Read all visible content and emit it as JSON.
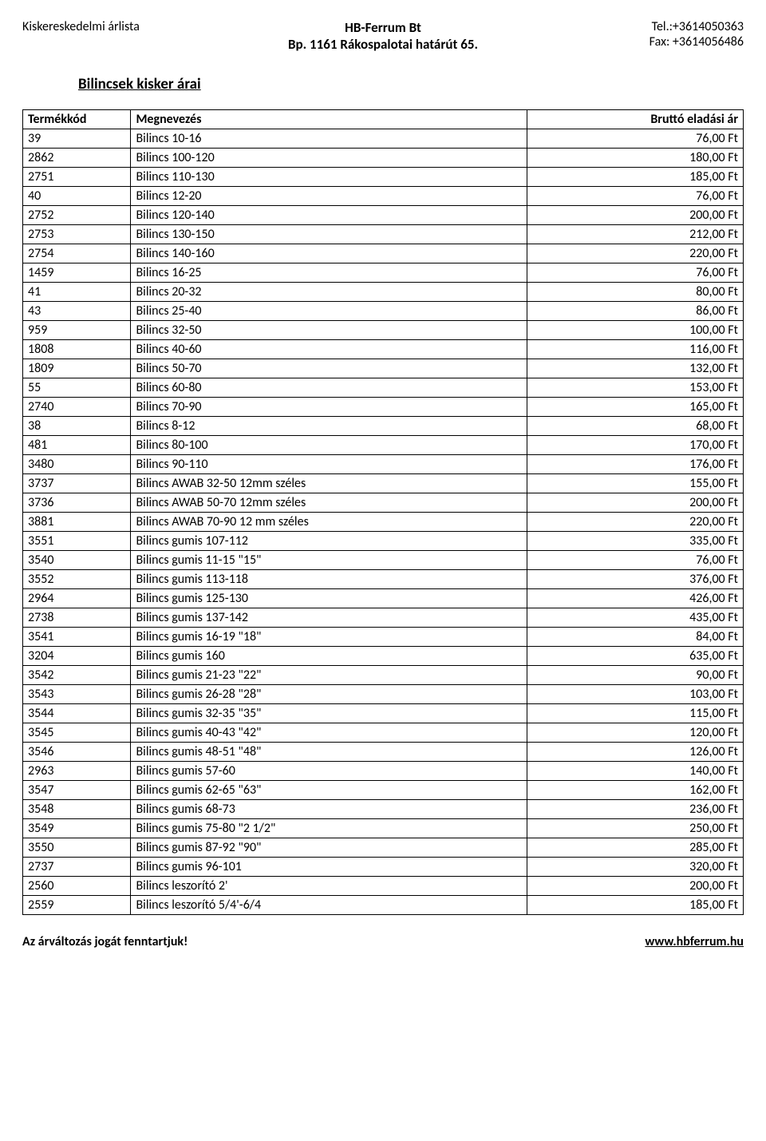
{
  "header": {
    "left": "Kiskereskedelmi árlista",
    "center_line1": "HB-Ferrum Bt",
    "center_line2": "Bp. 1161 Rákospalotai határút 65.",
    "right_line1": "Tel.:+3614050363",
    "right_line2": "Fax: +3614056486"
  },
  "section_title": "Bilincsek kisker árai",
  "columns": {
    "code": "Termékkód",
    "name": "Megnevezés",
    "price": "Bruttó eladási ár"
  },
  "rows": [
    {
      "code": "39",
      "name": "Bilincs 10-16",
      "price": "76,00 Ft"
    },
    {
      "code": "2862",
      "name": "Bilincs 100-120",
      "price": "180,00 Ft"
    },
    {
      "code": "2751",
      "name": "Bilincs 110-130",
      "price": "185,00 Ft"
    },
    {
      "code": "40",
      "name": "Bilincs 12-20",
      "price": "76,00 Ft"
    },
    {
      "code": "2752",
      "name": "Bilincs 120-140",
      "price": "200,00 Ft"
    },
    {
      "code": "2753",
      "name": "Bilincs 130-150",
      "price": "212,00 Ft"
    },
    {
      "code": "2754",
      "name": "Bilincs 140-160",
      "price": "220,00 Ft"
    },
    {
      "code": "1459",
      "name": "Bilincs 16-25",
      "price": "76,00 Ft"
    },
    {
      "code": "41",
      "name": "Bilincs 20-32",
      "price": "80,00 Ft"
    },
    {
      "code": "43",
      "name": "Bilincs 25-40",
      "price": "86,00 Ft"
    },
    {
      "code": "959",
      "name": "Bilincs 32-50",
      "price": "100,00 Ft"
    },
    {
      "code": "1808",
      "name": "Bilincs 40-60",
      "price": "116,00 Ft"
    },
    {
      "code": "1809",
      "name": "Bilincs 50-70",
      "price": "132,00 Ft"
    },
    {
      "code": "55",
      "name": "Bilincs 60-80",
      "price": "153,00 Ft"
    },
    {
      "code": "2740",
      "name": "Bilincs 70-90",
      "price": "165,00 Ft"
    },
    {
      "code": "38",
      "name": "Bilincs 8-12",
      "price": "68,00 Ft"
    },
    {
      "code": "481",
      "name": "Bilincs 80-100",
      "price": "170,00 Ft"
    },
    {
      "code": "3480",
      "name": "Bilincs 90-110",
      "price": "176,00 Ft"
    },
    {
      "code": "3737",
      "name": "Bilincs AWAB 32-50 12mm széles",
      "price": "155,00 Ft"
    },
    {
      "code": "3736",
      "name": "Bilincs AWAB 50-70 12mm széles",
      "price": "200,00 Ft"
    },
    {
      "code": "3881",
      "name": "Bilincs AWAB 70-90 12 mm széles",
      "price": "220,00 Ft"
    },
    {
      "code": "3551",
      "name": "Bilincs gumis 107-112",
      "price": "335,00 Ft"
    },
    {
      "code": "3540",
      "name": "Bilincs gumis 11-15 \"15\"",
      "price": "76,00 Ft"
    },
    {
      "code": "3552",
      "name": "Bilincs gumis 113-118",
      "price": "376,00 Ft"
    },
    {
      "code": "2964",
      "name": "Bilincs gumis 125-130",
      "price": "426,00 Ft"
    },
    {
      "code": "2738",
      "name": "Bilincs gumis 137-142",
      "price": "435,00 Ft"
    },
    {
      "code": "3541",
      "name": "Bilincs gumis 16-19 \"18\"",
      "price": "84,00 Ft"
    },
    {
      "code": "3204",
      "name": "Bilincs gumis 160",
      "price": "635,00 Ft"
    },
    {
      "code": "3542",
      "name": "Bilincs gumis 21-23 \"22\"",
      "price": "90,00 Ft"
    },
    {
      "code": "3543",
      "name": "Bilincs gumis 26-28 \"28\"",
      "price": "103,00 Ft"
    },
    {
      "code": "3544",
      "name": "Bilincs gumis 32-35 \"35\"",
      "price": "115,00 Ft"
    },
    {
      "code": "3545",
      "name": "Bilincs gumis 40-43 \"42\"",
      "price": "120,00 Ft"
    },
    {
      "code": "3546",
      "name": "Bilincs gumis 48-51 \"48\"",
      "price": "126,00 Ft"
    },
    {
      "code": "2963",
      "name": "Bilincs gumis 57-60",
      "price": "140,00 Ft"
    },
    {
      "code": "3547",
      "name": "Bilincs gumis 62-65 \"63\"",
      "price": "162,00 Ft"
    },
    {
      "code": "3548",
      "name": "Bilincs gumis 68-73",
      "price": "236,00 Ft"
    },
    {
      "code": "3549",
      "name": "Bilincs gumis 75-80 \"2 1/2\"",
      "price": "250,00 Ft"
    },
    {
      "code": "3550",
      "name": "Bilincs gumis 87-92 \"90\"",
      "price": "285,00 Ft"
    },
    {
      "code": "2737",
      "name": "Bilincs gumis 96-101",
      "price": "320,00 Ft"
    },
    {
      "code": "2560",
      "name": "Bilincs leszorító 2'",
      "price": "200,00 Ft"
    },
    {
      "code": "2559",
      "name": "Bilincs leszorító 5/4'-6/4",
      "price": "185,00 Ft"
    }
  ],
  "footer": {
    "left": "Az árváltozás jogát fenntartjuk!",
    "right": "www.hbferrum.hu"
  }
}
